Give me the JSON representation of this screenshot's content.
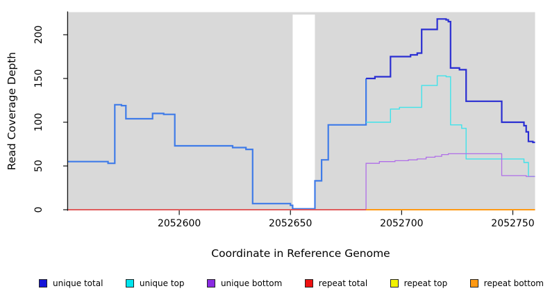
{
  "figure": {
    "x_axis": {
      "title": "Coordinate in Reference Genome",
      "ticks": [
        2052600,
        2052650,
        2052700,
        2052750
      ]
    },
    "y_axis": {
      "title": "Read Coverage Depth",
      "ticks": [
        0,
        50,
        100,
        150,
        200
      ]
    },
    "panel_background": "#d9d9d9",
    "legend": [
      {
        "label": "unique total",
        "color": "#1515d8"
      },
      {
        "label": "unique top",
        "color": "#00e5ee"
      },
      {
        "label": "unique bottom",
        "color": "#8a2be2"
      },
      {
        "label": "repeat total",
        "color": "#ee1111"
      },
      {
        "label": "repeat top",
        "color": "#f2f200"
      },
      {
        "label": "repeat bottom",
        "color": "#ff9912"
      }
    ]
  },
  "chart_data": {
    "type": "line",
    "step": true,
    "title": "",
    "xlabel": "Coordinate in Reference Genome",
    "ylabel": "Read Coverage Depth",
    "xlim": [
      2052550,
      2052760
    ],
    "ylim": [
      0,
      225
    ],
    "grid": false,
    "legend_position": "bottom",
    "background": "#d9d9d9",
    "masked_region": {
      "x_start": 2052651,
      "x_end": 2052661,
      "color": "#ffffff"
    },
    "series": [
      {
        "name": "unique total",
        "color": "#2a2ed2",
        "color_left_blend": "#3f7be8",
        "split_x": 2052684,
        "width": 2.2,
        "points": [
          [
            2052550,
            55
          ],
          [
            2052568,
            53
          ],
          [
            2052571,
            120
          ],
          [
            2052574,
            119
          ],
          [
            2052576,
            104
          ],
          [
            2052588,
            110
          ],
          [
            2052593,
            109
          ],
          [
            2052598,
            73
          ],
          [
            2052624,
            71
          ],
          [
            2052630,
            69
          ],
          [
            2052633,
            7
          ],
          [
            2052650,
            5
          ],
          [
            2052651,
            1
          ],
          [
            2052661,
            33
          ],
          [
            2052664,
            57
          ],
          [
            2052667,
            97
          ],
          [
            2052684,
            150
          ],
          [
            2052688,
            152
          ],
          [
            2052695,
            175
          ],
          [
            2052704,
            177
          ],
          [
            2052707,
            179
          ],
          [
            2052709,
            206
          ],
          [
            2052716,
            218
          ],
          [
            2052720,
            217
          ],
          [
            2052721,
            215
          ],
          [
            2052722,
            162
          ],
          [
            2052726,
            160
          ],
          [
            2052729,
            124
          ],
          [
            2052745,
            100
          ],
          [
            2052755,
            96
          ],
          [
            2052756,
            89
          ],
          [
            2052757,
            78
          ],
          [
            2052759,
            77
          ]
        ]
      },
      {
        "name": "unique top",
        "color": "#3fe3ea",
        "width": 1.4,
        "note": "equals unique total left of 2052684 (hidden beneath it)",
        "points": [
          [
            2052684,
            100
          ],
          [
            2052695,
            115
          ],
          [
            2052699,
            117
          ],
          [
            2052709,
            142
          ],
          [
            2052716,
            153
          ],
          [
            2052720,
            152
          ],
          [
            2052722,
            97
          ],
          [
            2052727,
            93
          ],
          [
            2052729,
            58
          ],
          [
            2052755,
            54
          ],
          [
            2052757,
            38
          ]
        ]
      },
      {
        "name": "unique bottom",
        "color": "#b06ee8",
        "width": 1.3,
        "points": [
          [
            2052550,
            0
          ],
          [
            2052684,
            53
          ],
          [
            2052690,
            55
          ],
          [
            2052697,
            56
          ],
          [
            2052703,
            57
          ],
          [
            2052707,
            58
          ],
          [
            2052711,
            60
          ],
          [
            2052715,
            61
          ],
          [
            2052718,
            63
          ],
          [
            2052721,
            64
          ],
          [
            2052745,
            39
          ],
          [
            2052756,
            38
          ]
        ]
      },
      {
        "name": "repeat top",
        "color": "#f2f200",
        "width": 1.5,
        "note": "zero across plot, hidden beneath repeat total",
        "points": [
          [
            2052550,
            0
          ]
        ]
      },
      {
        "name": "repeat total",
        "color": "#e04a5a",
        "width": 1.7,
        "points": [
          [
            2052550,
            0
          ]
        ]
      },
      {
        "name": "repeat bottom",
        "color": "#ff9912",
        "width": 2.0,
        "visible_from": 2052684,
        "note": "zero across plot, drawn on top from 2052684 rightward",
        "points": [
          [
            2052684,
            0
          ]
        ]
      }
    ]
  }
}
